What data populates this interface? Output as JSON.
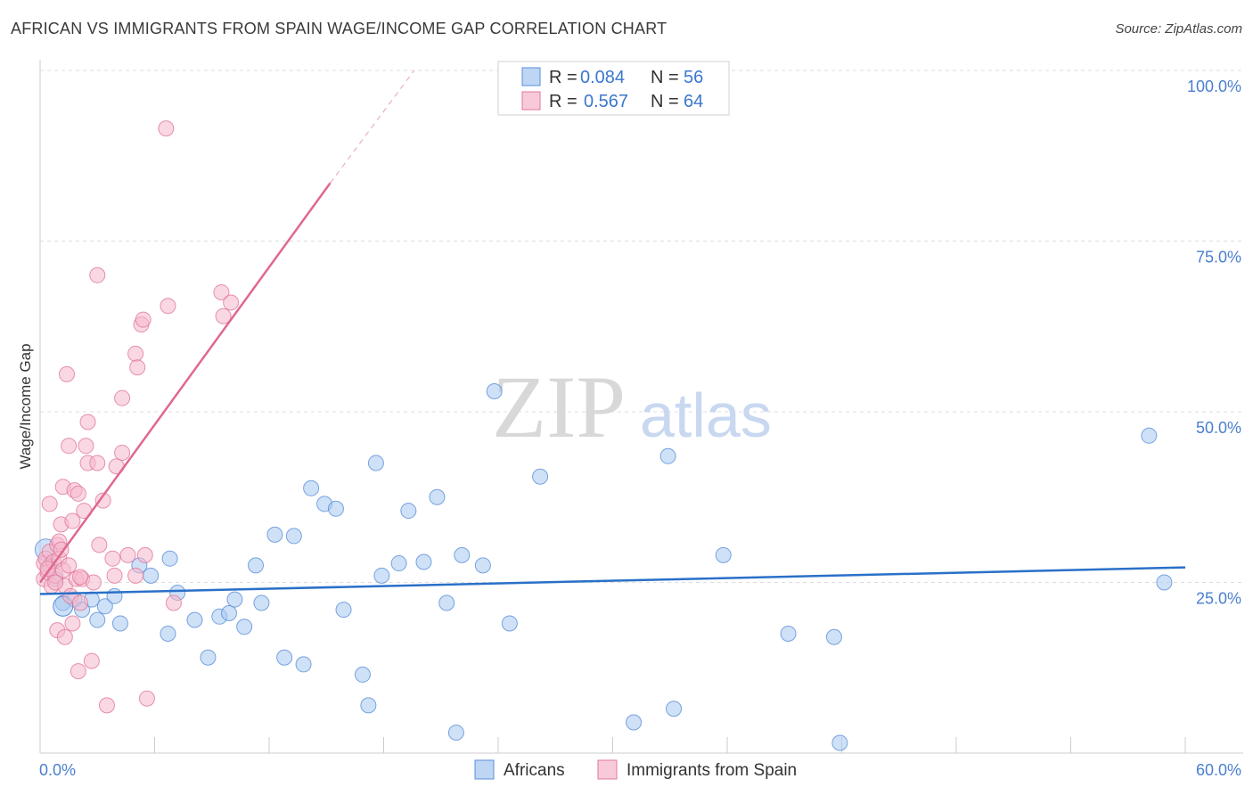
{
  "header": {
    "title": "AFRICAN VS IMMIGRANTS FROM SPAIN WAGE/INCOME GAP CORRELATION CHART",
    "source": "Source: ZipAtlas.com"
  },
  "colors": {
    "blue_fill": "#a8c8f0",
    "blue_stroke": "#5a8fd8",
    "blue_line": "#2a70c8",
    "pink_fill": "#f6b8cc",
    "pink_stroke": "#e07898",
    "pink_line": "#e06890",
    "grid": "#dddddd",
    "tick_text": "#4a7fd0"
  },
  "legend": {
    "r_label": "R =",
    "n_label": "N =",
    "series": [
      {
        "r": "0.084",
        "n": "56"
      },
      {
        "r": "0.567",
        "n": "64"
      }
    ]
  },
  "watermark": {
    "zip": "ZIP",
    "atlas": "atlas"
  },
  "chart_data": {
    "type": "scatter",
    "title": "AFRICAN VS IMMIGRANTS FROM SPAIN WAGE/INCOME GAP CORRELATION CHART",
    "xlabel": "",
    "ylabel": "Wage/Income Gap",
    "xlim": [
      0,
      60
    ],
    "ylim": [
      0,
      100
    ],
    "x_tick_labels": [
      "0.0%",
      "60.0%"
    ],
    "y_ticks": [
      25,
      50,
      75,
      100
    ],
    "y_tick_labels": [
      "25.0%",
      "50.0%",
      "75.0%",
      "100.0%"
    ],
    "legend_position": "top-center",
    "series": [
      {
        "name": "Africans",
        "color": "#a8c8f0",
        "trend": {
          "x0": 0,
          "y0": 23.3,
          "x1": 60,
          "y1": 27.2,
          "dashed_to": null
        },
        "points": [
          [
            0.3,
            29.8
          ],
          [
            0.5,
            27.5
          ],
          [
            0.8,
            25.5
          ],
          [
            1.2,
            22.0
          ],
          [
            1.8,
            22.5
          ],
          [
            2.2,
            21.0
          ],
          [
            2.7,
            22.5
          ],
          [
            3.0,
            19.5
          ],
          [
            3.4,
            21.5
          ],
          [
            3.9,
            23.0
          ],
          [
            4.2,
            19.0
          ],
          [
            5.8,
            26.0
          ],
          [
            5.2,
            27.5
          ],
          [
            6.7,
            17.5
          ],
          [
            6.8,
            28.5
          ],
          [
            7.2,
            23.5
          ],
          [
            8.1,
            19.5
          ],
          [
            8.8,
            14.0
          ],
          [
            9.4,
            20.0
          ],
          [
            9.9,
            20.5
          ],
          [
            10.2,
            22.5
          ],
          [
            10.7,
            18.5
          ],
          [
            11.3,
            27.5
          ],
          [
            11.6,
            22.0
          ],
          [
            12.3,
            32.0
          ],
          [
            12.8,
            14.0
          ],
          [
            13.3,
            31.8
          ],
          [
            13.8,
            13.0
          ],
          [
            14.2,
            38.8
          ],
          [
            14.9,
            36.5
          ],
          [
            15.5,
            35.8
          ],
          [
            15.9,
            21.0
          ],
          [
            16.9,
            11.5
          ],
          [
            17.2,
            7.0
          ],
          [
            17.6,
            42.5
          ],
          [
            17.9,
            26.0
          ],
          [
            18.8,
            27.8
          ],
          [
            19.3,
            35.5
          ],
          [
            20.1,
            28.0
          ],
          [
            20.8,
            37.5
          ],
          [
            21.3,
            22.0
          ],
          [
            21.8,
            3.0
          ],
          [
            22.1,
            29.0
          ],
          [
            23.2,
            27.5
          ],
          [
            23.8,
            53.0
          ],
          [
            24.6,
            19.0
          ],
          [
            26.2,
            40.5
          ],
          [
            31.1,
            4.5
          ],
          [
            32.9,
            43.5
          ],
          [
            33.2,
            6.5
          ],
          [
            35.8,
            29.0
          ],
          [
            39.2,
            17.5
          ],
          [
            41.6,
            17.0
          ],
          [
            41.9,
            1.5
          ],
          [
            58.1,
            46.5
          ],
          [
            58.9,
            25.0
          ]
        ]
      },
      {
        "name": "Immigrants from Spain",
        "color": "#f6b8cc",
        "trend": {
          "x0": 0,
          "y0": 25.0,
          "x1": 15.2,
          "y1": 83.5,
          "dashed_to": [
            19.6,
            100
          ]
        },
        "points": [
          [
            0.2,
            25.5
          ],
          [
            0.2,
            27.8
          ],
          [
            0.3,
            28.5
          ],
          [
            0.4,
            26.5
          ],
          [
            0.5,
            29.5
          ],
          [
            0.5,
            36.5
          ],
          [
            0.6,
            24.5
          ],
          [
            0.7,
            28.0
          ],
          [
            0.8,
            26.0
          ],
          [
            0.9,
            30.5
          ],
          [
            0.9,
            18.0
          ],
          [
            1.0,
            31.0
          ],
          [
            1.0,
            28.5
          ],
          [
            1.1,
            33.5
          ],
          [
            1.1,
            29.8
          ],
          [
            1.2,
            39.0
          ],
          [
            1.2,
            26.8
          ],
          [
            1.3,
            17.0
          ],
          [
            1.3,
            24.5
          ],
          [
            1.4,
            55.5
          ],
          [
            1.5,
            45.0
          ],
          [
            1.6,
            23.0
          ],
          [
            1.7,
            19.0
          ],
          [
            1.7,
            34.0
          ],
          [
            1.8,
            38.5
          ],
          [
            1.9,
            25.5
          ],
          [
            2.0,
            38.0
          ],
          [
            2.0,
            12.0
          ],
          [
            2.1,
            22.0
          ],
          [
            2.2,
            25.5
          ],
          [
            2.3,
            35.5
          ],
          [
            2.4,
            45.0
          ],
          [
            2.5,
            42.5
          ],
          [
            2.5,
            48.5
          ],
          [
            2.7,
            13.5
          ],
          [
            2.8,
            25.0
          ],
          [
            3.0,
            42.5
          ],
          [
            3.0,
            70.0
          ],
          [
            3.1,
            30.5
          ],
          [
            3.3,
            37.0
          ],
          [
            3.5,
            7.0
          ],
          [
            3.8,
            28.5
          ],
          [
            3.9,
            26.0
          ],
          [
            4.0,
            42.0
          ],
          [
            4.3,
            44.0
          ],
          [
            4.3,
            52.0
          ],
          [
            4.6,
            29.0
          ],
          [
            5.0,
            26.0
          ],
          [
            5.0,
            58.5
          ],
          [
            5.1,
            56.5
          ],
          [
            5.3,
            62.8
          ],
          [
            5.4,
            63.5
          ],
          [
            5.5,
            29.0
          ],
          [
            5.6,
            8.0
          ],
          [
            6.6,
            91.5
          ],
          [
            6.7,
            65.5
          ],
          [
            7.0,
            22.0
          ],
          [
            9.5,
            67.5
          ],
          [
            9.6,
            64.0
          ],
          [
            10.0,
            66.0
          ],
          [
            0.4,
            27.0
          ],
          [
            0.8,
            25.0
          ],
          [
            1.5,
            27.5
          ],
          [
            2.1,
            25.8
          ]
        ]
      }
    ]
  },
  "bottom_legend": [
    {
      "label": "Africans"
    },
    {
      "label": "Immigrants from Spain"
    }
  ]
}
